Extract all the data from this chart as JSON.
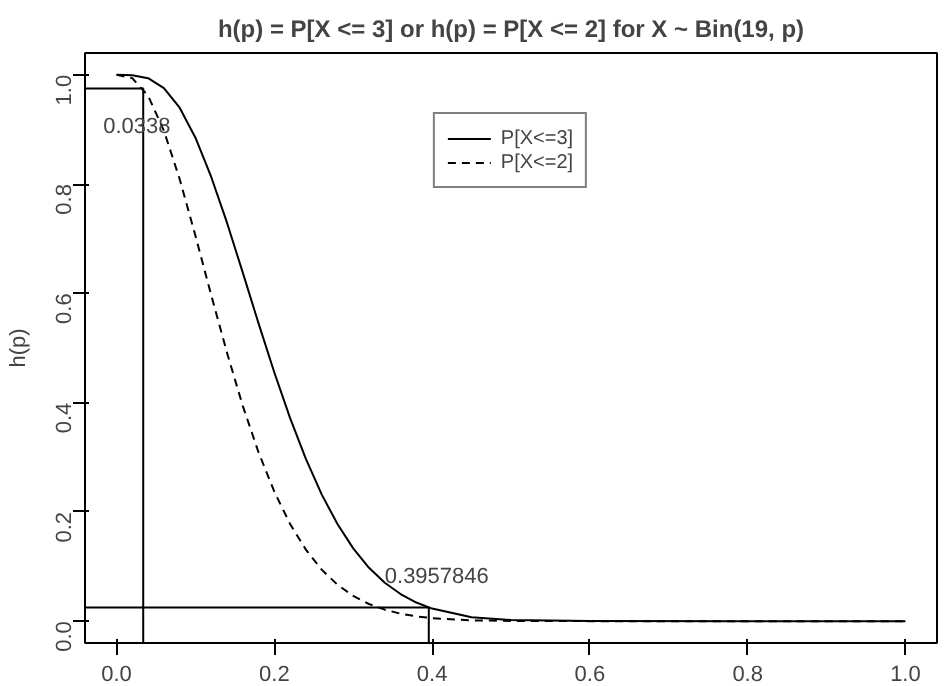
{
  "chart_data": {
    "type": "line",
    "title": "h(p) = P[X <= 3] or h(p) = P[X <= 2] for X ~ Bin(19, p)",
    "ylabel": "h(p)",
    "xlim": [
      -0.04,
      1.04
    ],
    "ylim": [
      -0.04,
      1.04
    ],
    "xticks": [
      {
        "value": 0,
        "label": "0.0"
      },
      0.2,
      0.4,
      0.6,
      0.8,
      {
        "value": 1,
        "label": "1.0"
      }
    ],
    "yticks": [
      {
        "value": 0,
        "label": "0.0"
      },
      0.2,
      0.4,
      0.6,
      0.8,
      {
        "value": 1,
        "label": "1.0"
      }
    ],
    "grid": false,
    "legend": "top",
    "marker": "none",
    "series": [
      {
        "name": "P[X<=3]",
        "color": "#000000",
        "line_style": "solid",
        "x": [
          0,
          0.02,
          0.04,
          0.06,
          0.08,
          0.1,
          0.12,
          0.14,
          0.16,
          0.18,
          0.2,
          0.22,
          0.24,
          0.26,
          0.28,
          0.3,
          0.32,
          0.34,
          0.36,
          0.38,
          0.4,
          0.45,
          0.5,
          0.6,
          0.8,
          1
        ],
        "values": [
          1,
          0.9994,
          0.9939,
          0.9757,
          0.9399,
          0.885,
          0.8131,
          0.7294,
          0.638,
          0.545,
          0.4551,
          0.3715,
          0.2969,
          0.2321,
          0.1777,
          0.1332,
          0.0977,
          0.0704,
          0.0496,
          0.0341,
          0.023,
          0.007,
          0.0022,
          0.0001,
          0,
          0
        ]
      },
      {
        "name": "P[X<=2]",
        "color": "#000000",
        "line_style": "dashed",
        "x": [
          0,
          0.02,
          0.04,
          0.06,
          0.08,
          0.1,
          0.12,
          0.14,
          0.16,
          0.18,
          0.2,
          0.22,
          0.24,
          0.26,
          0.28,
          0.3,
          0.32,
          0.34,
          0.36,
          0.38,
          0.4,
          0.45,
          0.5,
          0.6,
          0.8,
          1
        ],
        "values": [
          1,
          0.9938,
          0.9616,
          0.8979,
          0.8092,
          0.7055,
          0.5966,
          0.4913,
          0.3941,
          0.3089,
          0.2369,
          0.1778,
          0.1309,
          0.0943,
          0.0667,
          0.0462,
          0.0314,
          0.021,
          0.0137,
          0.0087,
          0.0055,
          0.0015,
          0.0004,
          0,
          0,
          0
        ]
      },
      {
        "color": "#000000",
        "line_style": "solid",
        "x": [
          -0.04,
          0.0338,
          0.0338
        ],
        "values": [
          0.975,
          0.975,
          -0.04
        ]
      },
      {
        "color": "#000000",
        "line_style": "solid",
        "x": [
          -0.04,
          0.3957846,
          0.3957846
        ],
        "values": [
          0.025,
          0.025,
          -0.04
        ]
      }
    ],
    "annotations": [
      {
        "text": "0.0338",
        "x": 0.0338,
        "y": 0.975
      },
      {
        "text": "0.3957846",
        "x": 0.3957846,
        "y": 0.025
      }
    ]
  }
}
